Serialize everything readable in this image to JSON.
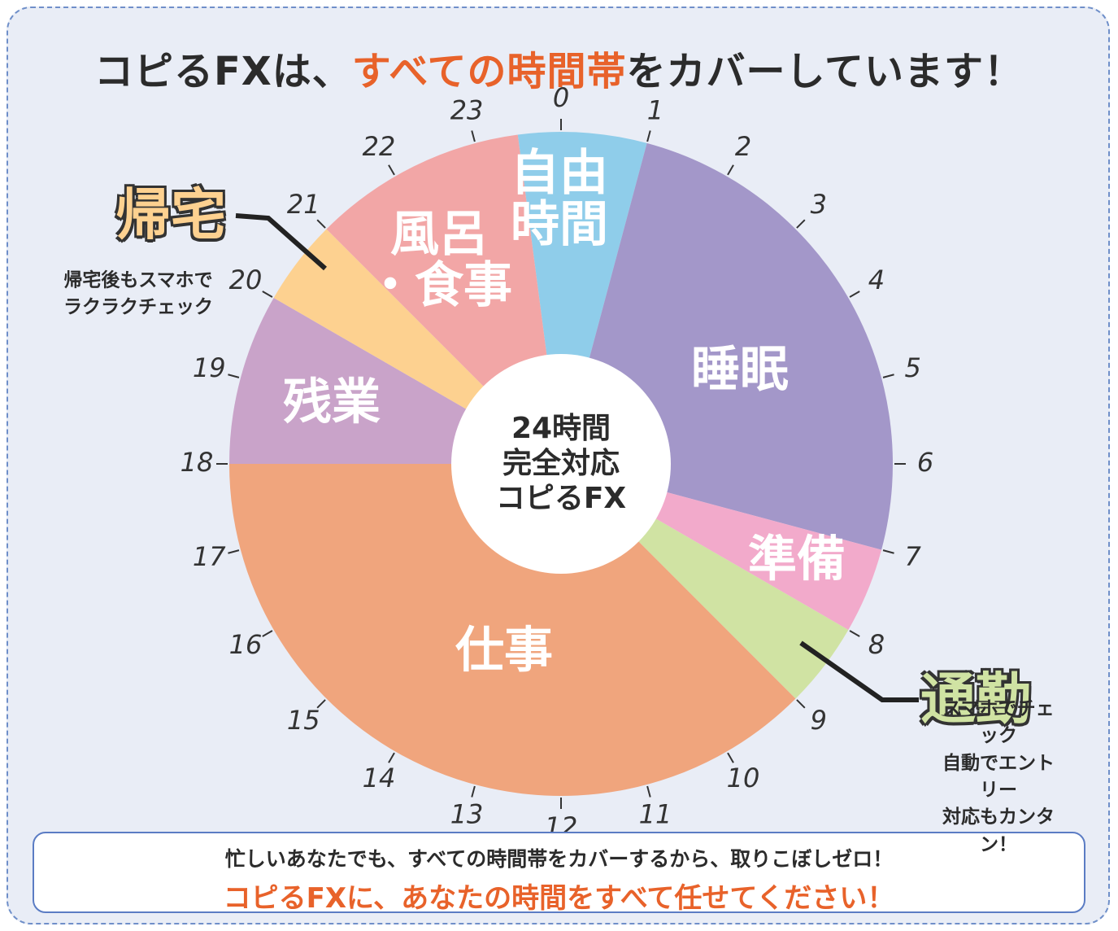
{
  "chart_data": {
    "type": "pie",
    "title_parts": [
      "コピるFXは、",
      "すべての時間帯",
      "をカバーしています！"
    ],
    "start": 23.5,
    "categories": [
      "自由\n時間",
      "睡眠",
      "準備",
      "通勤",
      "仕事",
      "残業",
      "帰宅",
      "風呂\n・食事"
    ],
    "values": [
      1.5,
      6,
      1,
      1,
      9,
      2,
      1,
      2.5
    ],
    "colors": [
      "#8fcdea",
      "#a397c9",
      "#f2aacb",
      "#d0e3a3",
      "#f0a57d",
      "#c9a3c9",
      "#fdd190",
      "#f2a6a6"
    ],
    "notes": [
      null,
      null,
      null,
      "スマホでチェック\n自動でエントリー\n対応もカンタン！",
      null,
      null,
      "帰宅後もスマホで\nラクラクチェック",
      null
    ],
    "center_text": "24時間\n完全対応\nコピるFX",
    "hour_ticks": [
      0,
      1,
      2,
      3,
      4,
      5,
      6,
      7,
      8,
      9,
      10,
      11,
      12,
      13,
      14,
      15,
      16,
      17,
      18,
      19,
      20,
      21,
      22,
      23
    ],
    "footer": [
      "忙しいあなたでも、すべての時間帯をカバーするから、取りこぼしゼロ！",
      "コピるFXに、あなたの時間をすべて任せてください！"
    ]
  }
}
